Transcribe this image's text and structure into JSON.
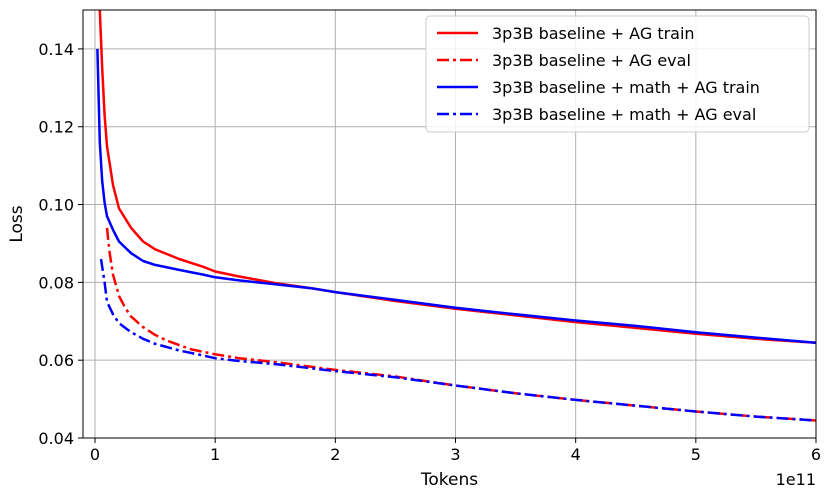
{
  "chart_data": {
    "type": "line",
    "xlabel": "Tokens",
    "ylabel": "Loss",
    "x_offset_text": "1e11",
    "xlim": [
      -0.1,
      6
    ],
    "ylim": [
      0.04,
      0.15
    ],
    "xticks": [
      0,
      1,
      2,
      3,
      4,
      5,
      6
    ],
    "xtick_labels": [
      "0",
      "1",
      "2",
      "3",
      "4",
      "5",
      "6"
    ],
    "yticks": [
      0.04,
      0.06,
      0.08,
      0.1,
      0.12,
      0.14
    ],
    "ytick_labels": [
      "0.04",
      "0.06",
      "0.08",
      "0.10",
      "0.12",
      "0.14"
    ],
    "grid": true,
    "legend_position": "top-right",
    "series": [
      {
        "name": "3p3B baseline + AG train",
        "color": "#ff0000",
        "dash": "solid",
        "x": [
          0.04,
          0.06,
          0.08,
          0.1,
          0.15,
          0.2,
          0.3,
          0.4,
          0.5,
          0.7,
          0.9,
          1.0,
          1.2,
          1.5,
          1.8,
          2.0,
          2.5,
          3.0,
          3.5,
          4.0,
          4.5,
          5.0,
          5.5,
          6.0
        ],
        "y": [
          0.15,
          0.135,
          0.123,
          0.115,
          0.105,
          0.099,
          0.094,
          0.0905,
          0.0885,
          0.086,
          0.084,
          0.0828,
          0.0815,
          0.0798,
          0.0785,
          0.0775,
          0.0752,
          0.0732,
          0.0715,
          0.0698,
          0.0683,
          0.0668,
          0.0655,
          0.0645
        ]
      },
      {
        "name": "3p3B baseline + AG eval",
        "color": "#ff0000",
        "dash": "dashdot",
        "x": [
          0.1,
          0.12,
          0.15,
          0.2,
          0.25,
          0.3,
          0.4,
          0.5,
          0.6,
          0.8,
          1.0,
          1.2,
          1.5,
          2.0,
          2.5,
          3.0,
          3.5,
          4.0,
          4.5,
          5.0,
          5.5,
          6.0
        ],
        "y": [
          0.094,
          0.088,
          0.082,
          0.0765,
          0.0735,
          0.0712,
          0.0685,
          0.0665,
          0.065,
          0.0628,
          0.0615,
          0.0605,
          0.0595,
          0.0575,
          0.0558,
          0.0535,
          0.0515,
          0.0498,
          0.0483,
          0.0468,
          0.0455,
          0.0445
        ]
      },
      {
        "name": "3p3B baseline + math + AG train",
        "color": "#0000ff",
        "dash": "solid",
        "x": [
          0.02,
          0.04,
          0.06,
          0.08,
          0.1,
          0.15,
          0.2,
          0.3,
          0.4,
          0.5,
          0.7,
          0.9,
          1.0,
          1.2,
          1.5,
          1.8,
          2.0,
          2.5,
          3.0,
          3.5,
          4.0,
          4.5,
          5.0,
          5.5,
          6.0
        ],
        "y": [
          0.14,
          0.116,
          0.106,
          0.1005,
          0.097,
          0.0935,
          0.0905,
          0.0875,
          0.0855,
          0.0845,
          0.0832,
          0.082,
          0.0813,
          0.0805,
          0.0795,
          0.0785,
          0.0775,
          0.0755,
          0.0735,
          0.0718,
          0.0702,
          0.0688,
          0.0672,
          0.0658,
          0.0645
        ]
      },
      {
        "name": "3p3B baseline + math + AG eval",
        "color": "#0000ff",
        "dash": "dashdot",
        "x": [
          0.05,
          0.08,
          0.1,
          0.15,
          0.2,
          0.3,
          0.4,
          0.5,
          0.7,
          0.9,
          1.0,
          1.2,
          1.5,
          2.0,
          2.5,
          3.0,
          3.5,
          4.0,
          4.5,
          5.0,
          5.5,
          6.0
        ],
        "y": [
          0.086,
          0.08,
          0.075,
          0.0718,
          0.0695,
          0.0672,
          0.0655,
          0.0642,
          0.0625,
          0.0612,
          0.0605,
          0.0598,
          0.059,
          0.0572,
          0.0556,
          0.0535,
          0.0515,
          0.0498,
          0.0483,
          0.0468,
          0.0455,
          0.0445
        ]
      }
    ]
  }
}
